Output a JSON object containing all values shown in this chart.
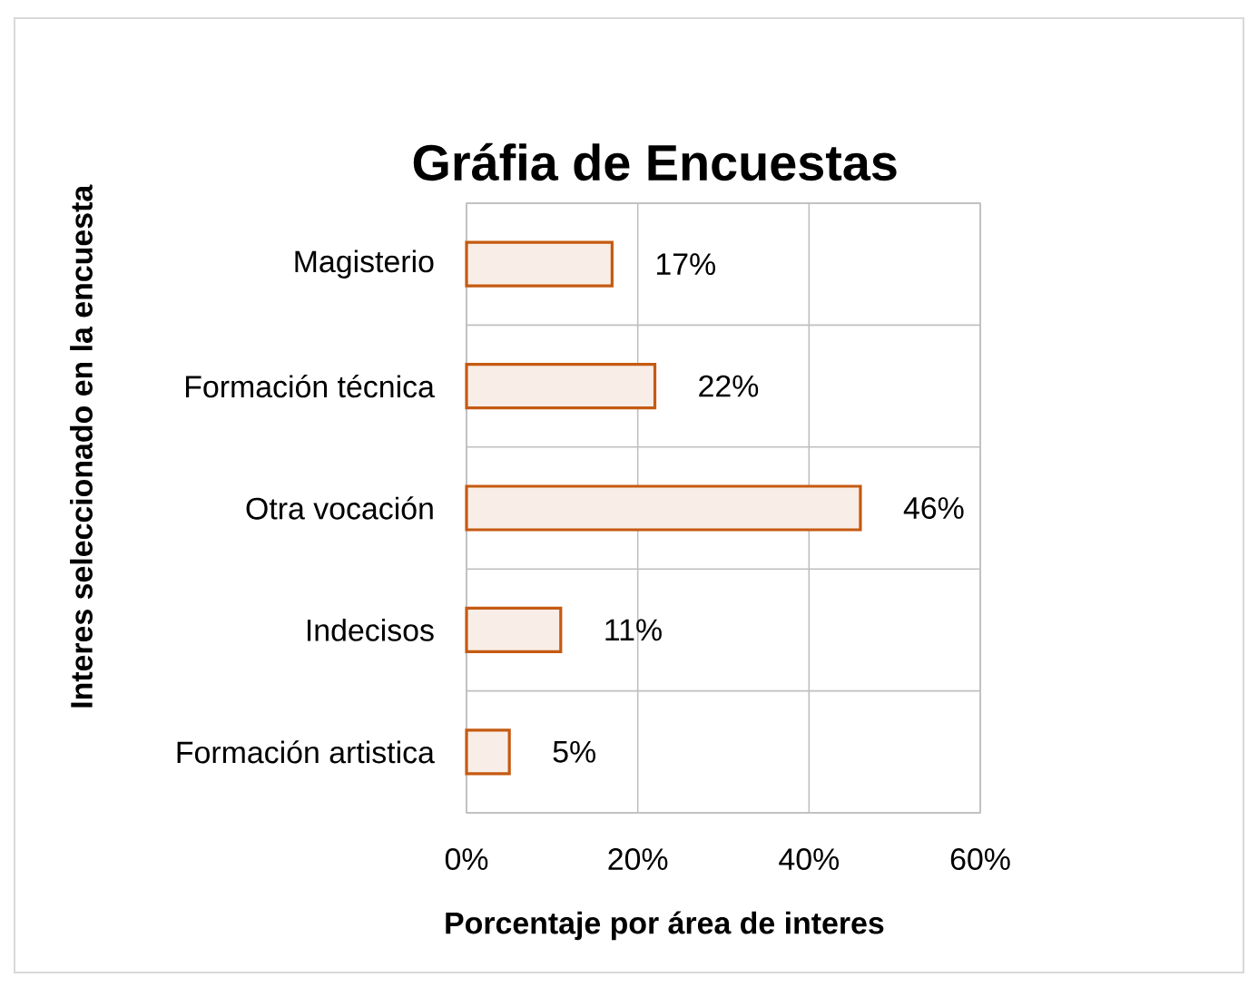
{
  "chart_data": {
    "type": "bar",
    "orientation": "horizontal",
    "title": "Gráfia de Encuestas",
    "xlabel": "Porcentaje por área de interes",
    "ylabel": "Interes seleccionado en la encuesta",
    "categories": [
      "Magisterio",
      "Formación técnica",
      "Otra vocación",
      "Indecisos",
      "Formación artistica"
    ],
    "values": [
      17,
      22,
      46,
      11,
      5
    ],
    "value_labels": [
      "17%",
      "22%",
      "46%",
      "11%",
      "5%"
    ],
    "color": "#c55a11",
    "xlim": [
      0,
      60
    ],
    "xticks": [
      {
        "value": 0,
        "label": "0%"
      },
      {
        "value": 20,
        "label": "20%"
      },
      {
        "value": 40,
        "label": "40%"
      },
      {
        "value": 60,
        "label": "60%"
      }
    ],
    "grid": true
  }
}
